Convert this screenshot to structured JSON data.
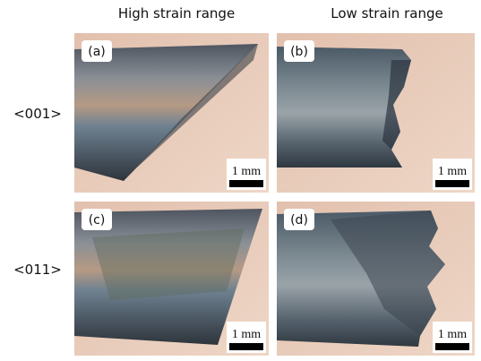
{
  "columns": [
    "High strain range",
    "Low strain range"
  ],
  "rows": [
    {
      "label": "<001>",
      "panels": [
        {
          "label": "(a)",
          "scale_bar": "1 mm"
        },
        {
          "label": "(b)",
          "scale_bar": "1 mm"
        }
      ]
    },
    {
      "label": "<011>",
      "panels": [
        {
          "label": "(c)",
          "scale_bar": "1 mm"
        },
        {
          "label": "(d)",
          "scale_bar": "1 mm"
        }
      ]
    }
  ]
}
